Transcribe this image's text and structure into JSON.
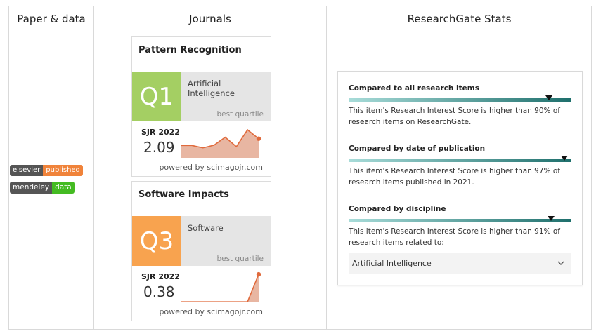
{
  "columns": {
    "paper": "Paper & data",
    "journals": "Journals",
    "stats": "ResearchGate Stats"
  },
  "badges": {
    "elsevier": {
      "left": "elsevier",
      "right": "published"
    },
    "mendeley": {
      "left": "mendeley",
      "right": "data"
    }
  },
  "journals": [
    {
      "title": "Pattern Recognition",
      "quartile": "Q1",
      "quartile_color": "#a4cf63",
      "category": "Artificial Intelligence",
      "best_quartile_label": "best quartile",
      "sjr_label": "SJR 2022",
      "sjr_value": "2.09",
      "powered_by": "powered by scimagojr.com",
      "trend": [
        0.42,
        0.42,
        0.34,
        0.43,
        0.7,
        0.38,
        0.95,
        0.65
      ]
    },
    {
      "title": "Software Impacts",
      "quartile": "Q3",
      "quartile_color": "#f8a34f",
      "category": "Software",
      "best_quartile_label": "best quartile",
      "sjr_label": "SJR 2022",
      "sjr_value": "0.38",
      "powered_by": "powered by scimagojr.com",
      "trend": [
        0.02,
        0.02,
        0.02,
        0.02,
        0.02,
        0.02,
        0.02,
        0.95
      ]
    }
  ],
  "research_gate": {
    "accent": "#1e6f6c",
    "sections": [
      {
        "title": "Compared to all research items",
        "percent": 90,
        "desc_line1": "This item's Research Interest Score is higher than 90% of",
        "desc_line2": "research items on ResearchGate."
      },
      {
        "title": "Compared by date of publication",
        "percent": 97,
        "desc_line1": "This item's Research Interest Score is higher than 97% of",
        "desc_line2": "research items published in 2021."
      },
      {
        "title": "Compared by discipline",
        "percent": 91,
        "desc_line1": "This item's Research Interest Score is higher than 91% of",
        "desc_line2": "research items related to:"
      }
    ],
    "discipline_select": "Artificial Intelligence"
  }
}
